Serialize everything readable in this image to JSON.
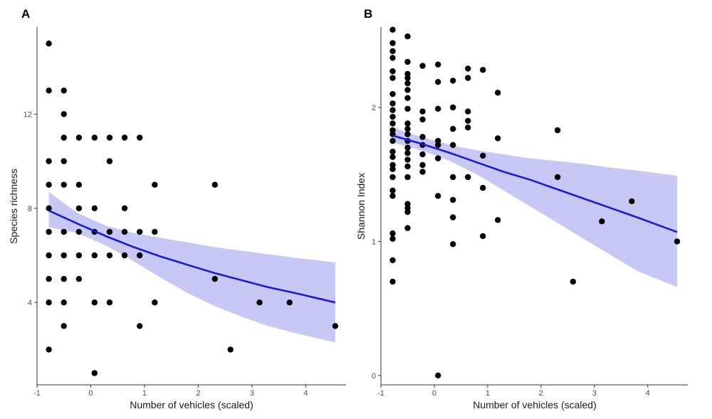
{
  "figure": {
    "colors": {
      "point": "#000000",
      "fit_line": "#1a1adb",
      "ribbon": "#c8c8f7",
      "axis": "#333333"
    }
  },
  "chart_data": [
    {
      "type": "scatter",
      "panel_label": "A",
      "xlabel": "Number of vehicles (scaled)",
      "ylabel": "Species richness",
      "xlim": [
        -1,
        4.75
      ],
      "ylim": [
        0.5,
        15.7
      ],
      "x_ticks": [
        -1,
        0,
        1,
        2,
        3,
        4
      ],
      "x_tick_labels": [
        "-1",
        "0",
        "1",
        "2",
        "3",
        "4"
      ],
      "y_ticks": [
        4,
        8,
        12
      ],
      "y_tick_labels": [
        "4",
        "8",
        "12"
      ],
      "grid": false,
      "points": [
        [
          -0.78,
          15
        ],
        [
          -0.78,
          13
        ],
        [
          -0.78,
          10
        ],
        [
          -0.78,
          9
        ],
        [
          -0.78,
          8
        ],
        [
          -0.78,
          7
        ],
        [
          -0.78,
          6
        ],
        [
          -0.78,
          5
        ],
        [
          -0.78,
          4
        ],
        [
          -0.78,
          2
        ],
        [
          -0.5,
          13
        ],
        [
          -0.5,
          12
        ],
        [
          -0.5,
          11
        ],
        [
          -0.5,
          10
        ],
        [
          -0.5,
          9
        ],
        [
          -0.5,
          7
        ],
        [
          -0.5,
          6
        ],
        [
          -0.5,
          5
        ],
        [
          -0.5,
          4
        ],
        [
          -0.5,
          3
        ],
        [
          -0.22,
          11
        ],
        [
          -0.22,
          9
        ],
        [
          -0.22,
          8
        ],
        [
          -0.22,
          7
        ],
        [
          -0.22,
          6
        ],
        [
          -0.22,
          5
        ],
        [
          0.07,
          11
        ],
        [
          0.07,
          8
        ],
        [
          0.07,
          7
        ],
        [
          0.07,
          6
        ],
        [
          0.07,
          4
        ],
        [
          0.07,
          1
        ],
        [
          0.35,
          11
        ],
        [
          0.35,
          10
        ],
        [
          0.35,
          7
        ],
        [
          0.35,
          6
        ],
        [
          0.35,
          4
        ],
        [
          0.63,
          11
        ],
        [
          0.63,
          8
        ],
        [
          0.63,
          7
        ],
        [
          0.63,
          6
        ],
        [
          0.91,
          11
        ],
        [
          0.91,
          7
        ],
        [
          0.91,
          6
        ],
        [
          0.91,
          3
        ],
        [
          1.19,
          9
        ],
        [
          1.19,
          7
        ],
        [
          1.19,
          4
        ],
        [
          2.31,
          9
        ],
        [
          2.31,
          5
        ],
        [
          2.6,
          2
        ],
        [
          3.14,
          4
        ],
        [
          3.7,
          4
        ],
        [
          4.55,
          3
        ]
      ],
      "fit": {
        "x": [
          -0.78,
          -0.25,
          0.3,
          0.8,
          1.3,
          1.8,
          2.3,
          2.8,
          3.3,
          3.8,
          4.55
        ],
        "y": [
          7.9,
          7.35,
          6.8,
          6.35,
          5.95,
          5.6,
          5.25,
          4.95,
          4.65,
          4.4,
          4.0
        ],
        "ci_low": [
          7.2,
          6.95,
          6.4,
          5.75,
          5.05,
          4.4,
          3.85,
          3.4,
          3.0,
          2.7,
          2.3
        ],
        "ci_high": [
          8.7,
          7.8,
          7.25,
          6.95,
          6.75,
          6.55,
          6.35,
          6.2,
          6.05,
          5.9,
          5.7
        ]
      }
    },
    {
      "type": "scatter",
      "panel_label": "B",
      "xlabel": "Number of vehicles (scaled)",
      "ylabel": "Shannon Index",
      "xlim": [
        -1,
        4.75
      ],
      "ylim": [
        -0.07,
        2.6
      ],
      "x_ticks": [
        -1,
        0,
        1,
        2,
        3,
        4
      ],
      "x_tick_labels": [
        "-1",
        "0",
        "1",
        "2",
        "3",
        "4"
      ],
      "y_ticks": [
        0,
        1,
        2
      ],
      "y_tick_labels": [
        "0",
        "1",
        "2"
      ],
      "grid": false,
      "points": [
        [
          -0.78,
          2.58
        ],
        [
          -0.78,
          2.48
        ],
        [
          -0.78,
          2.42
        ],
        [
          -0.78,
          2.37
        ],
        [
          -0.78,
          2.27
        ],
        [
          -0.78,
          2.22
        ],
        [
          -0.78,
          2.1
        ],
        [
          -0.78,
          2.03
        ],
        [
          -0.78,
          1.98
        ],
        [
          -0.78,
          1.93
        ],
        [
          -0.78,
          1.88
        ],
        [
          -0.78,
          1.83
        ],
        [
          -0.78,
          1.8
        ],
        [
          -0.78,
          1.75
        ],
        [
          -0.78,
          1.67
        ],
        [
          -0.78,
          1.63
        ],
        [
          -0.78,
          1.57
        ],
        [
          -0.78,
          1.54
        ],
        [
          -0.78,
          1.48
        ],
        [
          -0.78,
          1.38
        ],
        [
          -0.78,
          1.34
        ],
        [
          -0.78,
          1.06
        ],
        [
          -0.78,
          1.02
        ],
        [
          -0.78,
          0.86
        ],
        [
          -0.78,
          0.7
        ],
        [
          -0.5,
          2.53
        ],
        [
          -0.5,
          2.34
        ],
        [
          -0.5,
          2.25
        ],
        [
          -0.5,
          2.22
        ],
        [
          -0.5,
          2.18
        ],
        [
          -0.5,
          2.13
        ],
        [
          -0.5,
          2.07
        ],
        [
          -0.5,
          1.99
        ],
        [
          -0.5,
          1.88
        ],
        [
          -0.5,
          1.84
        ],
        [
          -0.5,
          1.8
        ],
        [
          -0.5,
          1.75
        ],
        [
          -0.5,
          1.7
        ],
        [
          -0.5,
          1.66
        ],
        [
          -0.5,
          1.61
        ],
        [
          -0.5,
          1.56
        ],
        [
          -0.5,
          1.48
        ],
        [
          -0.5,
          1.28
        ],
        [
          -0.5,
          1.25
        ],
        [
          -0.5,
          1.22
        ],
        [
          -0.5,
          1.1
        ],
        [
          -0.22,
          2.31
        ],
        [
          -0.22,
          1.97
        ],
        [
          -0.22,
          1.91
        ],
        [
          -0.22,
          1.78
        ],
        [
          -0.22,
          1.72
        ],
        [
          -0.22,
          1.65
        ],
        [
          -0.22,
          1.57
        ],
        [
          -0.22,
          1.52
        ],
        [
          0.07,
          2.32
        ],
        [
          0.07,
          2.19
        ],
        [
          0.07,
          1.99
        ],
        [
          0.07,
          1.75
        ],
        [
          0.07,
          1.72
        ],
        [
          0.07,
          1.62
        ],
        [
          0.07,
          1.34
        ],
        [
          0.07,
          0.0
        ],
        [
          0.35,
          2.2
        ],
        [
          0.35,
          2.0
        ],
        [
          0.35,
          1.84
        ],
        [
          0.35,
          1.72
        ],
        [
          0.35,
          1.48
        ],
        [
          0.35,
          1.31
        ],
        [
          0.35,
          1.18
        ],
        [
          0.35,
          0.98
        ],
        [
          0.63,
          2.29
        ],
        [
          0.63,
          2.22
        ],
        [
          0.63,
          1.97
        ],
        [
          0.63,
          1.9
        ],
        [
          0.63,
          1.85
        ],
        [
          0.63,
          1.48
        ],
        [
          0.91,
          2.28
        ],
        [
          0.91,
          1.64
        ],
        [
          0.91,
          1.4
        ],
        [
          0.91,
          1.04
        ],
        [
          1.19,
          2.11
        ],
        [
          1.19,
          1.77
        ],
        [
          1.19,
          1.16
        ],
        [
          2.31,
          1.83
        ],
        [
          2.31,
          1.48
        ],
        [
          2.6,
          0.7
        ],
        [
          3.14,
          1.15
        ],
        [
          3.7,
          1.3
        ],
        [
          4.55,
          1.0
        ]
      ],
      "fit": {
        "x": [
          -0.78,
          -0.25,
          0.3,
          0.8,
          1.3,
          1.8,
          2.3,
          2.8,
          3.3,
          3.8,
          4.55
        ],
        "y": [
          1.79,
          1.73,
          1.66,
          1.59,
          1.52,
          1.46,
          1.39,
          1.32,
          1.25,
          1.18,
          1.07
        ],
        "ci_low": [
          1.74,
          1.68,
          1.6,
          1.5,
          1.38,
          1.26,
          1.14,
          1.02,
          0.9,
          0.78,
          0.66
        ],
        "ci_high": [
          1.85,
          1.78,
          1.72,
          1.68,
          1.65,
          1.62,
          1.6,
          1.58,
          1.55,
          1.53,
          1.49
        ]
      }
    }
  ]
}
